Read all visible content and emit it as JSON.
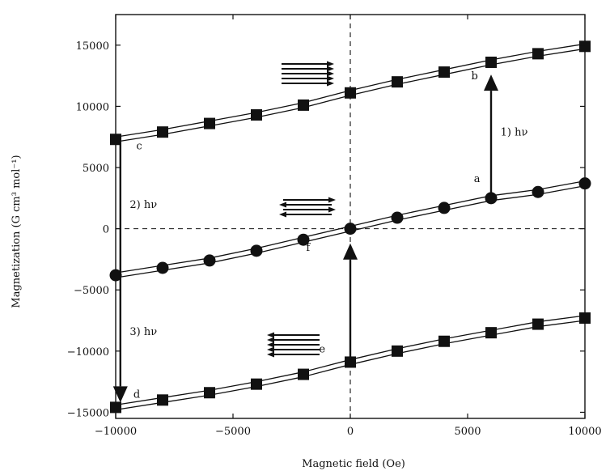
{
  "chart_data": {
    "type": "line",
    "title": "",
    "xlabel": "Magnetic field (Oe)",
    "ylabel": "Magnetization (G cm³ mol⁻¹)",
    "xlim": [
      -10000,
      10000
    ],
    "ylim": [
      -15500,
      17500
    ],
    "x_ticks": [
      -10000,
      -5000,
      0,
      5000,
      10000
    ],
    "x_tick_labels": [
      "−10000",
      "−5000",
      "0",
      "5000",
      "10000"
    ],
    "y_ticks": [
      -15000,
      -10000,
      -5000,
      0,
      5000,
      10000,
      15000
    ],
    "y_tick_labels": [
      "−15000",
      "−10000",
      "−5000",
      "0",
      "5000",
      "10000",
      "15000"
    ],
    "grid": false,
    "x": [
      -10000,
      -8000,
      -6000,
      -4000,
      -2000,
      0,
      2000,
      4000,
      6000,
      8000,
      10000
    ],
    "series": [
      {
        "marker": "square",
        "values": [
          7300,
          7900,
          8600,
          9300,
          10100,
          11100,
          12000,
          12800,
          13600,
          14300,
          14900
        ]
      },
      {
        "marker": "circle",
        "values": [
          -3800,
          -3200,
          -2600,
          -1800,
          -900,
          0,
          900,
          1700,
          2500,
          3000,
          3700
        ]
      },
      {
        "marker": "square",
        "values": [
          -14600,
          -14000,
          -13400,
          -12700,
          -11900,
          -10900,
          -10000,
          -9200,
          -8500,
          -7800,
          -7300
        ]
      }
    ],
    "annotations": {
      "point_labels": [
        {
          "text": "a",
          "x": 5400,
          "y": 3800
        },
        {
          "text": "b",
          "x": 5300,
          "y": 12200
        },
        {
          "text": "c",
          "x": -9000,
          "y": 6500
        },
        {
          "text": "d",
          "x": -9100,
          "y": -13800
        },
        {
          "text": "e",
          "x": -1200,
          "y": -10100
        },
        {
          "text": "f",
          "x": -1800,
          "y": -1800
        }
      ],
      "steps": [
        {
          "text": "1) hν",
          "x": 6400,
          "y": 7600
        },
        {
          "text": "2) hν",
          "x": -9400,
          "y": 1700
        },
        {
          "text": "3) hν",
          "x": -9400,
          "y": -8700
        }
      ]
    }
  }
}
